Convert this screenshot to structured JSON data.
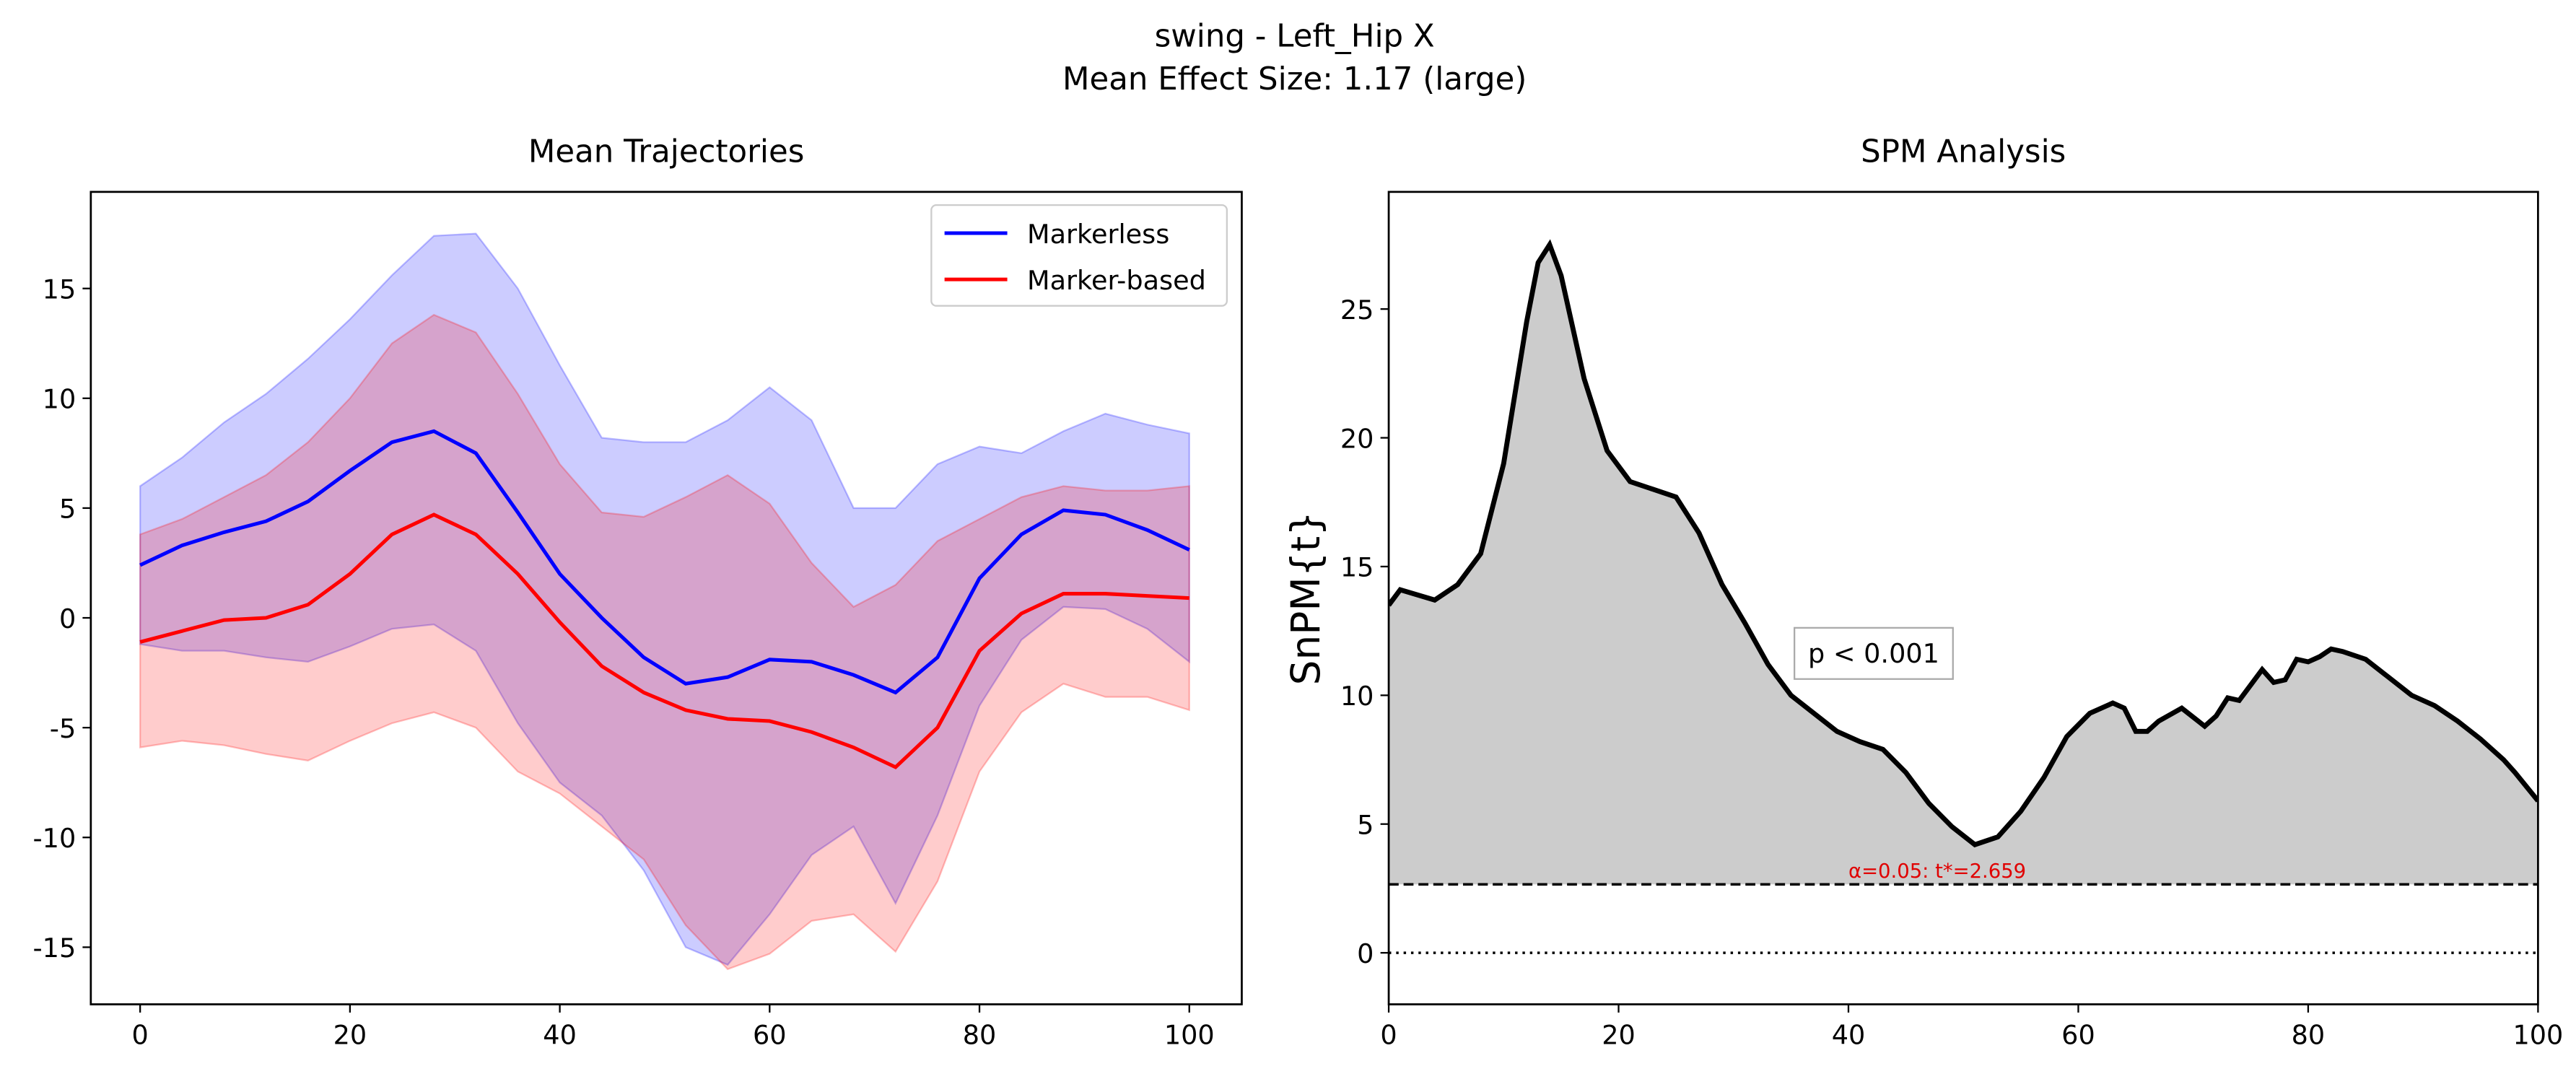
{
  "title": "swing - Left_Hip X",
  "subtitle": "Mean Effect Size: 1.17 (large)",
  "chart_data": [
    {
      "type": "line",
      "title": "Mean Trajectories",
      "x": [
        0,
        4,
        8,
        12,
        16,
        20,
        24,
        28,
        32,
        36,
        40,
        44,
        48,
        52,
        56,
        60,
        64,
        68,
        72,
        76,
        80,
        84,
        88,
        92,
        96,
        100
      ],
      "series": [
        {
          "name": "Markerless",
          "color": "#0000ff",
          "values": [
            2.4,
            3.3,
            3.9,
            4.4,
            5.3,
            6.7,
            8.0,
            8.5,
            7.5,
            4.8,
            2.0,
            0,
            -1.8,
            -3.0,
            -2.7,
            -1.9,
            -2.0,
            -2.6,
            -3.4,
            -1.8,
            1.8,
            3.8,
            4.9,
            4.7,
            4.0,
            3.1
          ],
          "upper": [
            6.0,
            7.3,
            8.9,
            10.2,
            11.8,
            13.6,
            15.6,
            17.4,
            17.5,
            15.0,
            11.5,
            8.2,
            8.0,
            8.0,
            9.0,
            10.5,
            9.0,
            5.0,
            5.0,
            7.0,
            7.8,
            7.5,
            8.5,
            9.3,
            8.8,
            8.4
          ],
          "lower": [
            -1.2,
            -1.5,
            -1.5,
            -1.8,
            -2.0,
            -1.3,
            -0.5,
            -0.3,
            -1.5,
            -4.8,
            -7.5,
            -9.0,
            -11.5,
            -15.0,
            -15.8,
            -13.5,
            -10.8,
            -9.5,
            -13.0,
            -9.0,
            -4.0,
            -1.0,
            0.5,
            0.4,
            -0.5,
            -2.0
          ]
        },
        {
          "name": "Marker-based",
          "color": "#ff0000",
          "values": [
            -1.1,
            -0.6,
            -0.1,
            0,
            0.6,
            2.0,
            3.8,
            4.7,
            3.8,
            2.0,
            -0.2,
            -2.2,
            -3.4,
            -4.2,
            -4.6,
            -4.7,
            -5.2,
            -5.9,
            -6.8,
            -5.0,
            -1.5,
            0.2,
            1.1,
            1.1,
            1.0,
            0.9
          ],
          "upper": [
            3.8,
            4.5,
            5.5,
            6.5,
            8.0,
            10.0,
            12.5,
            13.8,
            13.0,
            10.2,
            7.0,
            4.8,
            4.6,
            5.5,
            6.5,
            5.2,
            2.5,
            0.5,
            1.5,
            3.5,
            4.5,
            5.5,
            6.0,
            5.8,
            5.8,
            6.0
          ],
          "lower": [
            -5.9,
            -5.6,
            -5.8,
            -6.2,
            -6.5,
            -5.6,
            -4.8,
            -4.3,
            -5.0,
            -7.0,
            -8.0,
            -9.5,
            -11.0,
            -14.0,
            -16.0,
            -15.3,
            -13.8,
            -13.5,
            -15.2,
            -12.0,
            -7.0,
            -4.3,
            -3.0,
            -3.6,
            -3.6,
            -4.2
          ]
        }
      ],
      "xlim": [
        -4.7,
        105
      ],
      "ylim": [
        -17.6,
        19.4
      ],
      "xticks": [
        0,
        20,
        40,
        60,
        80,
        100
      ],
      "yticks": [
        -15,
        -10,
        -5,
        0,
        5,
        10,
        15
      ],
      "legend": "upper right"
    },
    {
      "type": "area",
      "title": "SPM Analysis",
      "ylabel": "SnPM{t}",
      "color": "#cccccc",
      "line_color": "#000000",
      "x": [
        0,
        1,
        4,
        6,
        8,
        10,
        12,
        13,
        14,
        15,
        17,
        19,
        21,
        23,
        25,
        27,
        29,
        31,
        33,
        35,
        37,
        39,
        41,
        43,
        45,
        47,
        49,
        51,
        53,
        55,
        57,
        59,
        61,
        63,
        64,
        65,
        66,
        67,
        69,
        71,
        72,
        73,
        74,
        76,
        77,
        78,
        79,
        80,
        81,
        82,
        83,
        85,
        87,
        89,
        91,
        93,
        95,
        97,
        98,
        100
      ],
      "values": [
        13.5,
        14.1,
        13.7,
        14.3,
        15.5,
        19,
        24.5,
        26.8,
        27.5,
        26.3,
        22.3,
        19.5,
        18.3,
        18.0,
        17.7,
        16.3,
        14.3,
        12.8,
        11.2,
        10.0,
        9.3,
        8.6,
        8.2,
        7.9,
        7.0,
        5.8,
        4.9,
        4.2,
        4.5,
        5.5,
        6.8,
        8.4,
        9.3,
        9.7,
        9.5,
        8.6,
        8.6,
        9.0,
        9.5,
        8.8,
        9.2,
        9.9,
        9.8,
        11.0,
        10.5,
        10.6,
        11.4,
        11.3,
        11.5,
        11.8,
        11.7,
        11.4,
        10.7,
        10.0,
        9.6,
        9.0,
        8.3,
        7.5,
        7.0,
        5.9
      ],
      "threshold": 2.659,
      "threshold_label": "α=0.05:  t*=2.659",
      "zero_line": 0,
      "annotation": "p < 0.001",
      "xlim": [
        0,
        100
      ],
      "ylim": [
        -2.0,
        29.55
      ],
      "xticks": [
        0,
        20,
        40,
        60,
        80,
        100
      ],
      "yticks": [
        0,
        5,
        10,
        15,
        20,
        25
      ]
    }
  ]
}
